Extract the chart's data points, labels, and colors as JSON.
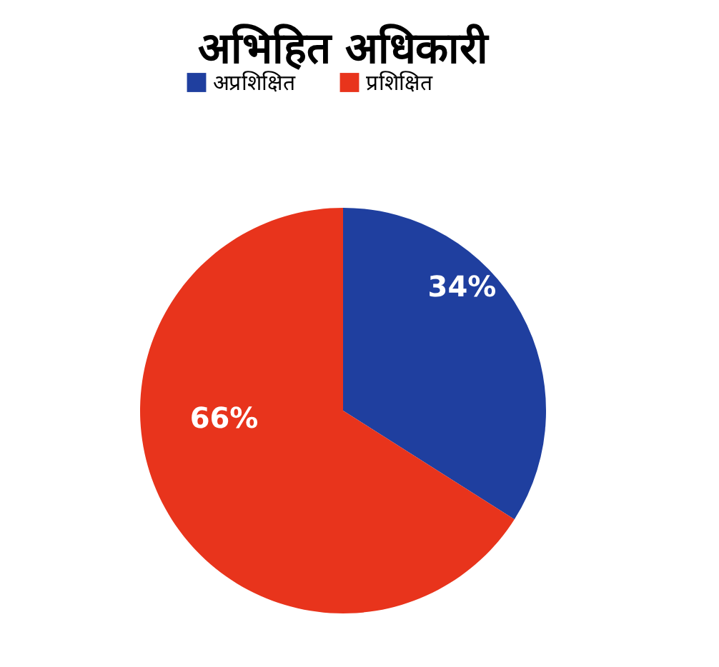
{
  "chart_data": {
    "type": "pie",
    "title": "अभिहित  अधिकारी",
    "categories": [
      "अप्रशिक्षित",
      "प्रशिक्षित"
    ],
    "values": [
      34,
      66
    ],
    "colors": [
      "#1f3f9f",
      "#e8341c"
    ],
    "value_labels": [
      "34%",
      "66%"
    ],
    "legend": "top"
  }
}
